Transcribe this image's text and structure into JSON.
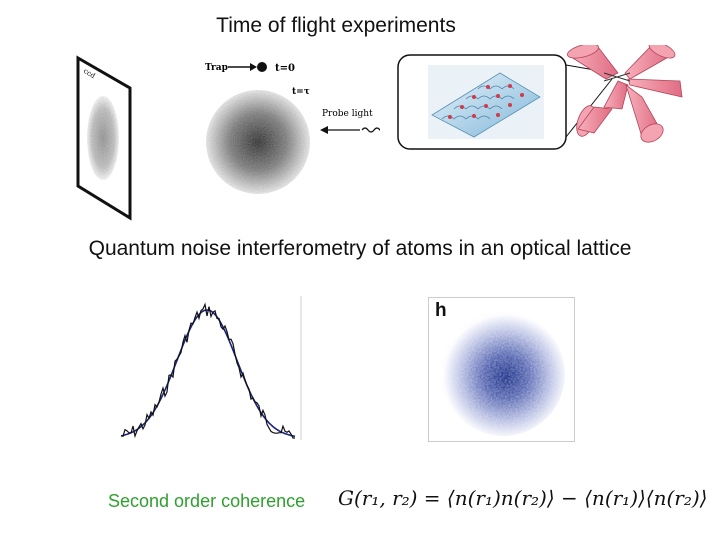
{
  "slide": {
    "title_top": "Time of flight experiments",
    "title_middle": "Quantum noise interferometry of atoms in an optical lattice",
    "caption": "Second order coherence",
    "formula": "G(r₁, r₂) = ⟨n(r₁)n(r₂)⟩ − ⟨n(r₁)⟩⟨n(r₂)⟩"
  },
  "tof_diagram": {
    "trap_label": "Trap",
    "t0_label": "t=0",
    "ttau_label": "t=τ",
    "probe_label": "Probe light",
    "screen_label": "ccd"
  },
  "noise_panel": {
    "panel_label": "h"
  },
  "colors": {
    "caption_green": "#2ea02e",
    "laser_pink": "#f08a9a",
    "plot_blue": "#1a237e",
    "noise_blue": "#2a3a8c"
  }
}
